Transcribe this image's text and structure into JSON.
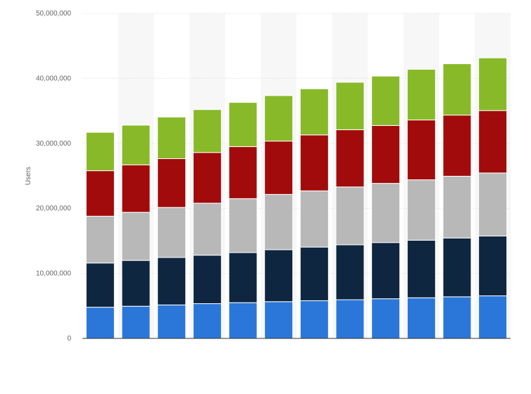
{
  "chart_data": {
    "type": "bar",
    "stacked": true,
    "ylabel": "Users",
    "ylim": [
      0,
      50000000
    ],
    "yticks": [
      0,
      10000000,
      20000000,
      30000000,
      40000000,
      50000000
    ],
    "ytick_labels": [
      "0",
      "10,000,000",
      "20,000,000",
      "30,000,000",
      "40,000,000",
      "50,000,000"
    ],
    "grid": "horizontal dotted",
    "legend": "none visible",
    "colors": [
      "#2a77d9",
      "#0f2640",
      "#b8b8b8",
      "#a20b0b",
      "#88b928"
    ],
    "series": [
      {
        "values": [
          4800000,
          4950000,
          5150000,
          5350000,
          5500000,
          5650000,
          5800000,
          5950000,
          6100000,
          6250000,
          6400000,
          6550000
        ]
      },
      {
        "values": [
          6800000,
          7050000,
          7300000,
          7450000,
          7700000,
          8000000,
          8250000,
          8450000,
          8650000,
          8850000,
          9050000,
          9200000
        ]
      },
      {
        "values": [
          7200000,
          7400000,
          7700000,
          8000000,
          8300000,
          8500000,
          8650000,
          8900000,
          9100000,
          9300000,
          9500000,
          9700000
        ]
      },
      {
        "values": [
          7000000,
          7300000,
          7500000,
          7800000,
          8000000,
          8200000,
          8600000,
          8800000,
          8900000,
          9200000,
          9400000,
          9600000
        ]
      },
      {
        "values": [
          5900000,
          6100000,
          6400000,
          6600000,
          6800000,
          7000000,
          7100000,
          7300000,
          7600000,
          7800000,
          7900000,
          8100000
        ]
      }
    ]
  }
}
